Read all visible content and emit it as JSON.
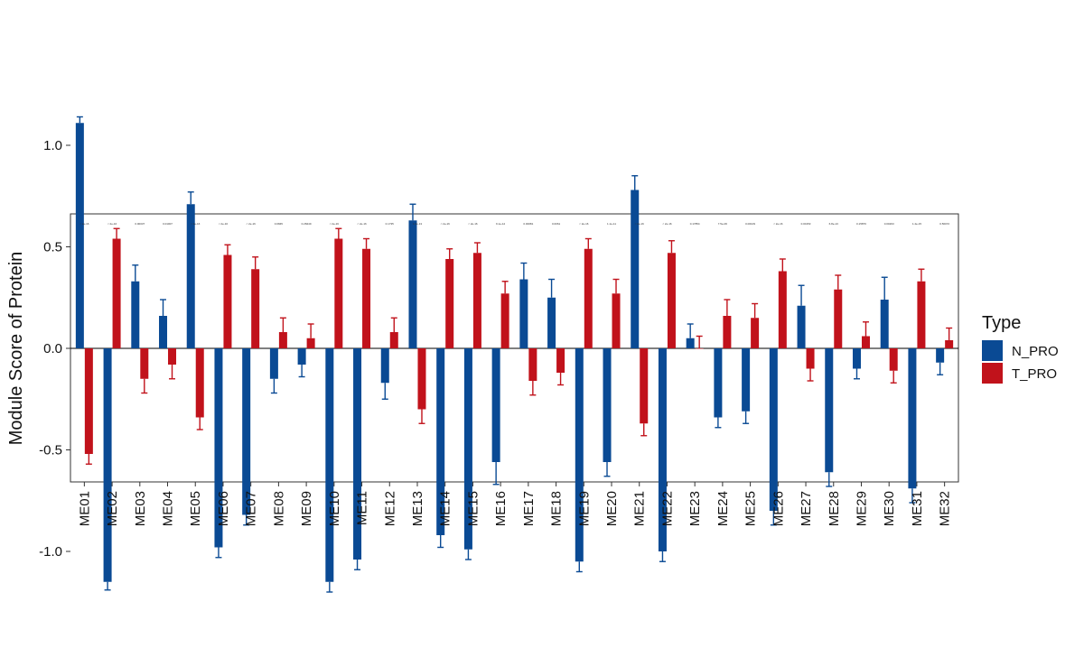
{
  "chart_data": {
    "type": "bar",
    "title": "",
    "xlabel": "",
    "ylabel": "Module Score of Protein",
    "ylim": [
      -1.3,
      1.3
    ],
    "yticks": [
      -1.0,
      -0.5,
      0.0,
      0.5,
      1.0
    ],
    "ytick_labels": [
      "-1.0",
      "-0.5",
      "0.0",
      "0.5",
      "1.0"
    ],
    "legend_title": "Type",
    "legend_position": "right",
    "categories": [
      "ME01",
      "ME02",
      "ME03",
      "ME04",
      "ME05",
      "ME06",
      "ME07",
      "ME08",
      "ME09",
      "ME10",
      "ME11",
      "ME12",
      "ME13",
      "ME14",
      "ME15",
      "ME16",
      "ME17",
      "ME18",
      "ME19",
      "ME20",
      "ME21",
      "ME22",
      "ME23",
      "ME24",
      "ME25",
      "ME26",
      "ME27",
      "ME28",
      "ME29",
      "ME30",
      "ME31",
      "ME32"
    ],
    "series": [
      {
        "name": "N_PRO",
        "color": "#0a4a94",
        "values": [
          1.11,
          -1.15,
          0.33,
          0.16,
          0.71,
          -0.98,
          -0.82,
          -0.15,
          -0.08,
          -1.15,
          -1.04,
          -0.17,
          0.63,
          -0.92,
          -0.99,
          -0.56,
          0.34,
          0.25,
          -1.05,
          -0.56,
          0.78,
          -1.0,
          0.05,
          -0.34,
          -0.31,
          -0.8,
          0.21,
          -0.61,
          -0.1,
          0.24,
          -0.69,
          -0.07
        ],
        "errors": [
          0.03,
          0.04,
          0.08,
          0.08,
          0.06,
          0.05,
          0.05,
          0.07,
          0.06,
          0.05,
          0.05,
          0.08,
          0.08,
          0.06,
          0.05,
          0.11,
          0.08,
          0.09,
          0.05,
          0.07,
          0.07,
          0.05,
          0.07,
          0.05,
          0.06,
          0.07,
          0.1,
          0.07,
          0.05,
          0.11,
          0.07,
          0.06
        ]
      },
      {
        "name": "T_PRO",
        "color": "#c1121b",
        "values": [
          -0.52,
          0.54,
          -0.15,
          -0.08,
          -0.34,
          0.46,
          0.39,
          0.08,
          0.05,
          0.54,
          0.49,
          0.08,
          -0.3,
          0.44,
          0.47,
          0.27,
          -0.16,
          -0.12,
          0.49,
          0.27,
          -0.37,
          0.47,
          0.0,
          0.16,
          0.15,
          0.38,
          -0.1,
          0.29,
          0.06,
          -0.11,
          0.33,
          0.04
        ],
        "errors": [
          0.05,
          0.05,
          0.07,
          0.07,
          0.06,
          0.05,
          0.06,
          0.07,
          0.07,
          0.05,
          0.05,
          0.07,
          0.07,
          0.05,
          0.05,
          0.06,
          0.07,
          0.06,
          0.05,
          0.07,
          0.06,
          0.06,
          0.06,
          0.08,
          0.07,
          0.06,
          0.06,
          0.07,
          0.07,
          0.06,
          0.06,
          0.06
        ]
      }
    ],
    "pvalue_labels": [
      "< 2e-16",
      "< 2e-16",
      "0.00037",
      "0.01007",
      "< 2e-16",
      "< 2e-16",
      "< 2e-16",
      "0.0845",
      "0.28449",
      "< 2e-16",
      "< 2e-16",
      "0.1735",
      "1.6e-13",
      "< 2e-16",
      "< 2e-16",
      "9.1e-12",
      "0.00081",
      "0.0061",
      "< 2e-16",
      "1.1e-11",
      "< 2e-16",
      "< 2e-16",
      "0.17854",
      "7.5e-06",
      "0.00109",
      "< 2e-16",
      "0.00153",
      "6.8e-13",
      "0.15876",
      "0.00263",
      "1.4e-15",
      "0.56072"
    ]
  }
}
